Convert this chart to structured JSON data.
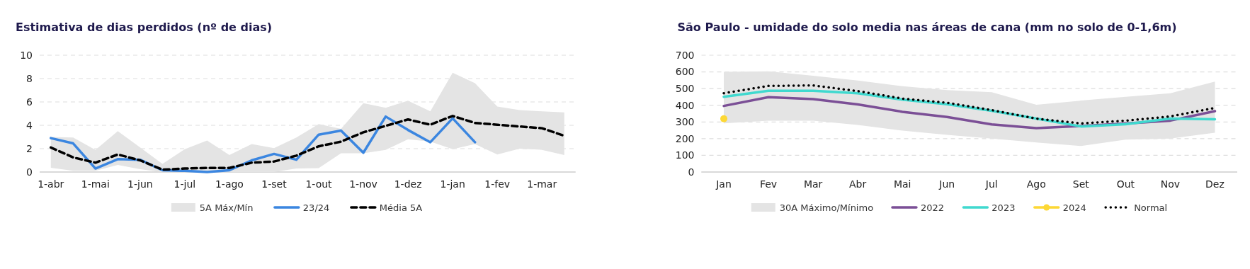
{
  "chart_data": [
    {
      "type": "line",
      "title": "Estimativa de dias perdidos (nº de dias)",
      "categories": [
        "1-abr",
        null,
        "1-mai",
        null,
        "1-jun",
        null,
        "1-jul",
        null,
        "1-ago",
        null,
        "1-set",
        null,
        "1-out",
        null,
        "1-nov",
        null,
        "1-dez",
        null,
        "1-jan",
        null,
        "1-fev",
        null,
        "1-mar",
        null
      ],
      "series": [
        {
          "type": "area",
          "name": "5A Máx/Mín",
          "color": "#e4e4e4",
          "values": [
            null,
            null,
            null,
            null,
            null,
            null,
            null,
            null,
            null,
            null,
            null,
            null,
            null,
            null,
            null,
            null,
            null,
            null,
            null,
            null,
            null,
            null,
            null,
            null
          ],
          "lower": [
            0.36,
            0.1,
            0.1,
            0.6,
            0.25,
            0,
            0,
            0,
            0,
            0,
            0,
            0.3,
            0.33,
            1.6,
            1.6,
            1.9,
            2.8,
            2.6,
            1.95,
            2.4,
            1.5,
            2.0,
            1.9,
            1.45
          ],
          "upper": [
            3.0,
            2.95,
            1.9,
            3.5,
            2.1,
            0.7,
            1.95,
            2.7,
            1.45,
            2.4,
            2.05,
            2.95,
            4.1,
            3.7,
            5.9,
            5.5,
            6.1,
            5.2,
            8.5,
            7.6,
            5.6,
            5.3,
            5.2,
            5.1
          ]
        },
        {
          "type": "line",
          "name": "23/24",
          "color": "#3b86e0",
          "values": [
            2.9,
            2.45,
            0.3,
            1.1,
            1.05,
            0.15,
            0.1,
            0.0,
            0.15,
            1.0,
            1.55,
            1.05,
            3.2,
            3.55,
            1.65,
            4.75,
            3.6,
            2.55,
            4.6,
            2.55,
            null,
            null,
            null,
            null
          ]
        },
        {
          "type": "line",
          "name": "Média 5A",
          "color": "#000000",
          "line_style": "dashed",
          "values": [
            2.1,
            1.25,
            0.8,
            1.5,
            1.0,
            0.2,
            0.3,
            0.35,
            0.35,
            0.8,
            0.9,
            1.4,
            2.2,
            2.6,
            3.4,
            3.95,
            4.5,
            4.05,
            4.8,
            4.2,
            4.05,
            3.9,
            3.75,
            3.1
          ]
        }
      ],
      "ylim": [
        0,
        10
      ],
      "yticks": [
        0,
        2,
        4,
        6,
        8,
        10
      ],
      "grid": "y",
      "legend": "bottom"
    },
    {
      "type": "line",
      "title": "São Paulo - umidade do solo media nas áreas de cana (mm no solo de 0-1,6m)",
      "categories": [
        "Jan",
        "Fev",
        "Mar",
        "Abr",
        "Mai",
        "Jun",
        "Jul",
        "Ago",
        "Set",
        "Out",
        "Nov",
        "Dez"
      ],
      "series": [
        {
          "type": "area",
          "name": "30A Máximo/Mínimo",
          "color": "#e4e4e4",
          "values": [
            null,
            null,
            null,
            null,
            null,
            null,
            null,
            null,
            null,
            null,
            null,
            null
          ],
          "lower": [
            292,
            308,
            308,
            282,
            248,
            223,
            200,
            177,
            156,
            194,
            200,
            235
          ],
          "upper": [
            600,
            603,
            577,
            548,
            514,
            491,
            478,
            403,
            428,
            451,
            472,
            542
          ]
        },
        {
          "type": "line",
          "name": "2022",
          "color": "#7b4f96",
          "values": [
            396,
            449,
            437,
            405,
            361,
            330,
            285,
            263,
            276,
            291,
            308,
            365
          ]
        },
        {
          "type": "line",
          "name": "2023",
          "color": "#40d9cf",
          "values": [
            451,
            487,
            487,
            472,
            434,
            406,
            367,
            320,
            273,
            286,
            320,
            316
          ]
        },
        {
          "type": "line",
          "name": "2024",
          "color": "#fdd835",
          "marker": "circle",
          "values": [
            319,
            null,
            null,
            null,
            null,
            null,
            null,
            null,
            null,
            null,
            null,
            null
          ]
        },
        {
          "type": "line",
          "name": "Normal",
          "color": "#000000",
          "line_style": "dotted",
          "values": [
            472,
            516,
            519,
            485,
            440,
            415,
            371,
            320,
            291,
            308,
            333,
            384
          ]
        }
      ],
      "ylim": [
        0,
        700
      ],
      "yticks": [
        0,
        100,
        200,
        300,
        400,
        500,
        600,
        700
      ],
      "grid": "y",
      "legend": "bottom"
    }
  ]
}
